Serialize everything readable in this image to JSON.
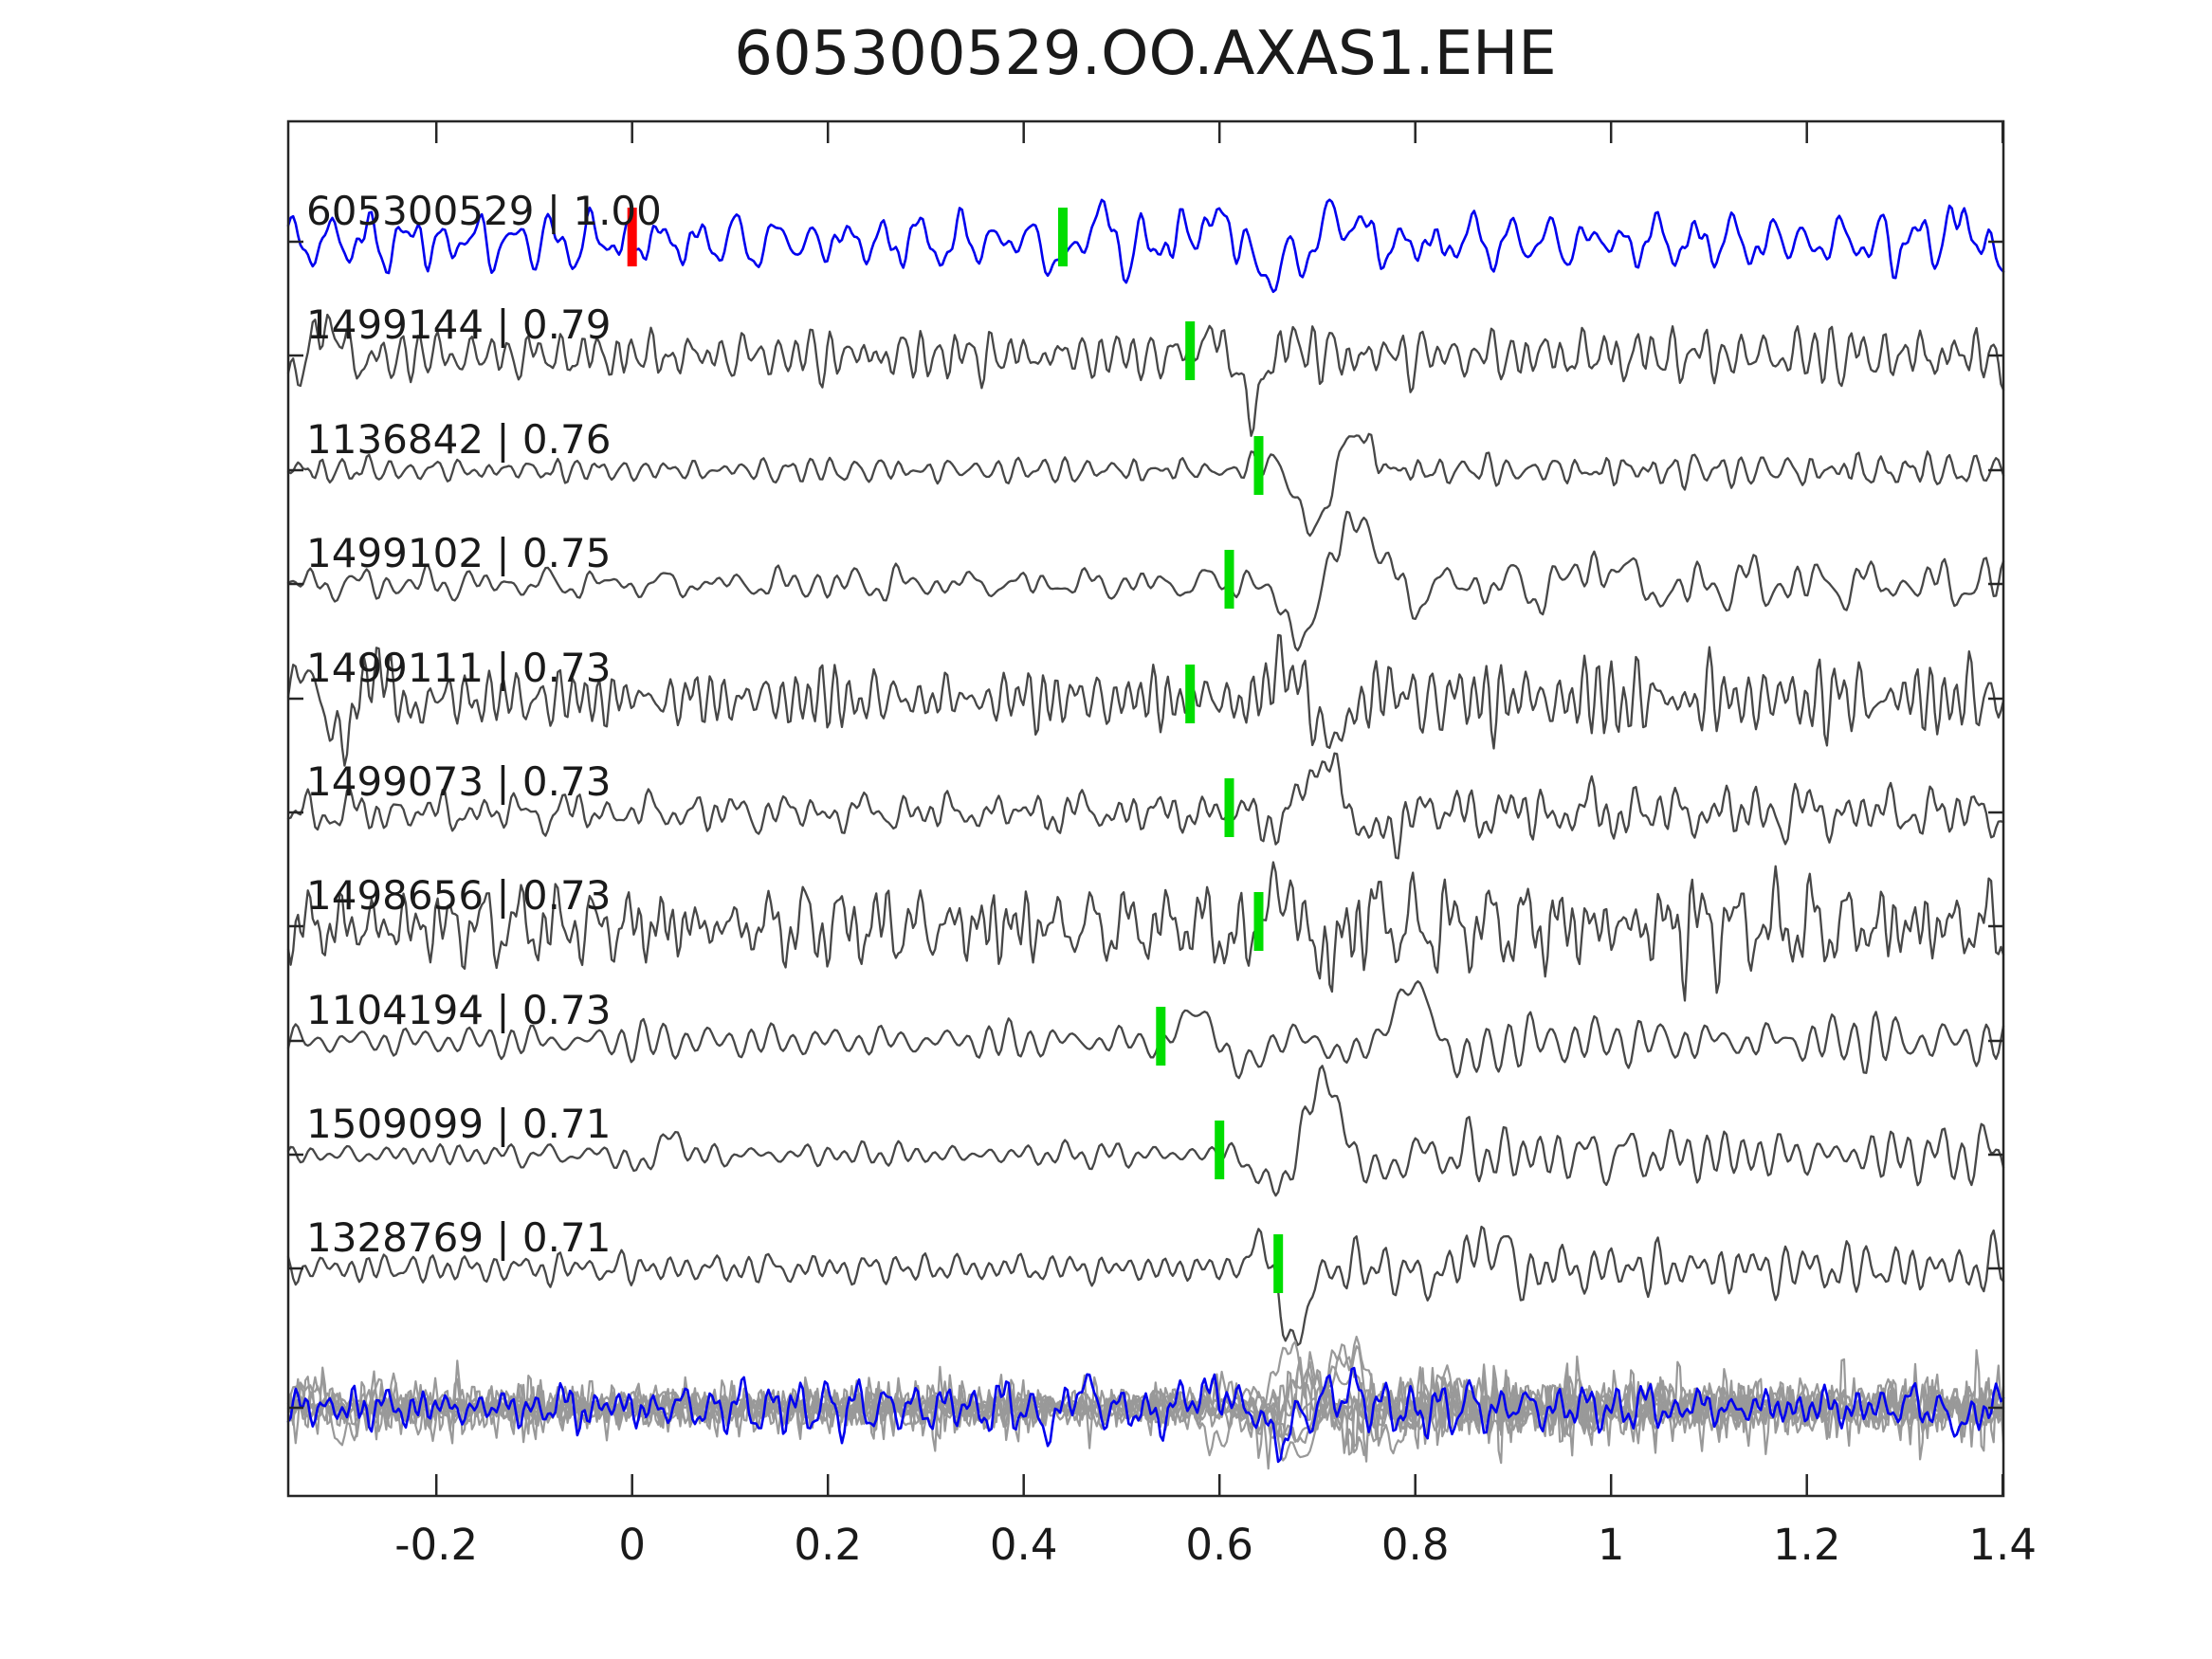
{
  "title": "605300529.OO.AXAS1.EHE",
  "colors": {
    "background": "#ffffff",
    "axis": "#262626",
    "text": "#1a1a1a",
    "master_trace": "#0000ee",
    "trace": "#474747",
    "overlay_trace": "#999999",
    "pick_marker": "#00dd00",
    "master_pick_marker": "#ff0000"
  },
  "axis": {
    "x_min": -0.35,
    "x_max": 1.4,
    "tick_values": [
      -0.2,
      0,
      0.2,
      0.4,
      0.6,
      0.8,
      1,
      1.2,
      1.4
    ],
    "tick_labels": [
      "-0.2",
      "0",
      "0.2",
      "0.4",
      "0.6",
      "0.8",
      "1",
      "1.2",
      "1.4"
    ]
  },
  "chart_data": {
    "type": "line",
    "title": "605300529.OO.AXAS1.EHE",
    "xlabel": "",
    "ylabel": "",
    "x_range": [
      -0.35,
      1.4
    ],
    "description_of_rows": "10 stacked normalized waveform traces plus one bottom row with all traces overlaid",
    "traces": [
      {
        "label": "605300529 | 1.00",
        "id": "605300529",
        "similarity": 1.0,
        "pick_time": 0.44,
        "master_pick_time": 0.0,
        "is_master": true
      },
      {
        "label": "1499144 | 0.79",
        "id": "1499144",
        "similarity": 0.79,
        "pick_time": 0.57,
        "is_master": false
      },
      {
        "label": "1136842 | 0.76",
        "id": "1136842",
        "similarity": 0.76,
        "pick_time": 0.64,
        "is_master": false
      },
      {
        "label": "1499102 | 0.75",
        "id": "1499102",
        "similarity": 0.75,
        "pick_time": 0.61,
        "is_master": false
      },
      {
        "label": "1499111 | 0.73",
        "id": "1499111",
        "similarity": 0.73,
        "pick_time": 0.57,
        "is_master": false
      },
      {
        "label": "1499073 | 0.73",
        "id": "1499073",
        "similarity": 0.73,
        "pick_time": 0.61,
        "is_master": false
      },
      {
        "label": "1498656 | 0.73",
        "id": "1498656",
        "similarity": 0.73,
        "pick_time": 0.64,
        "is_master": false
      },
      {
        "label": "1104194 | 0.73",
        "id": "1104194",
        "similarity": 0.73,
        "pick_time": 0.54,
        "is_master": false
      },
      {
        "label": "1509099 | 0.71",
        "id": "1509099",
        "similarity": 0.71,
        "pick_time": 0.6,
        "is_master": false
      },
      {
        "label": "1328769 | 0.71",
        "id": "1328769",
        "similarity": 0.71,
        "pick_time": 0.66,
        "is_master": false
      }
    ],
    "overlay_row": {
      "description": "All traces overlaid in gray with the master trace highlighted in blue",
      "overlay_color": "#999999",
      "master_color": "#0000ee"
    }
  }
}
